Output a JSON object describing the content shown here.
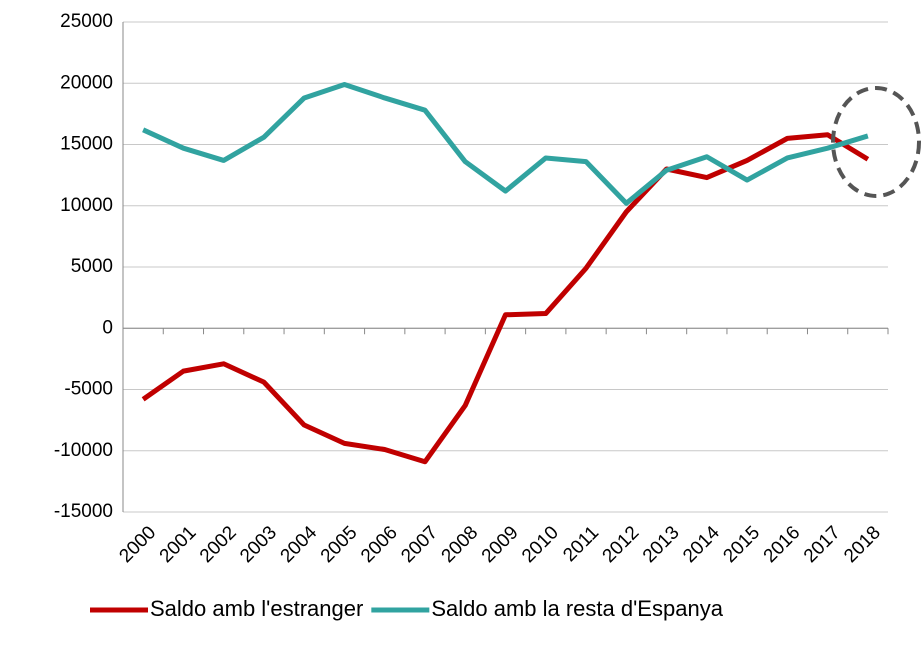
{
  "chart_data": {
    "type": "line",
    "categories": [
      "2000",
      "2001",
      "2002",
      "2003",
      "2004",
      "2005",
      "2006",
      "2007",
      "2008",
      "2009",
      "2010",
      "2011",
      "2012",
      "2013",
      "2014",
      "2015",
      "2016",
      "2017",
      "2018"
    ],
    "series": [
      {
        "name": "Saldo amb l'estranger",
        "color": "#c00000",
        "values": [
          -5800,
          -3500,
          -2900,
          -4400,
          -7900,
          -9400,
          -9900,
          -10900,
          -6300,
          1100,
          1200,
          4900,
          9500,
          13000,
          12300,
          13700,
          15500,
          15800,
          13800
        ]
      },
      {
        "name": "Saldo amb la resta d'Espanya",
        "color": "#31a3a0",
        "values": [
          16200,
          14700,
          13700,
          15600,
          18800,
          19900,
          18800,
          17800,
          13600,
          11200,
          13900,
          13600,
          10200,
          12900,
          14000,
          12100,
          13900,
          14700,
          15700
        ]
      }
    ],
    "ylim": [
      -15000,
      25000
    ],
    "yticks": [
      -15000,
      -10000,
      -5000,
      0,
      5000,
      10000,
      15000,
      20000,
      25000
    ],
    "grid": true,
    "legend": "bottom"
  }
}
